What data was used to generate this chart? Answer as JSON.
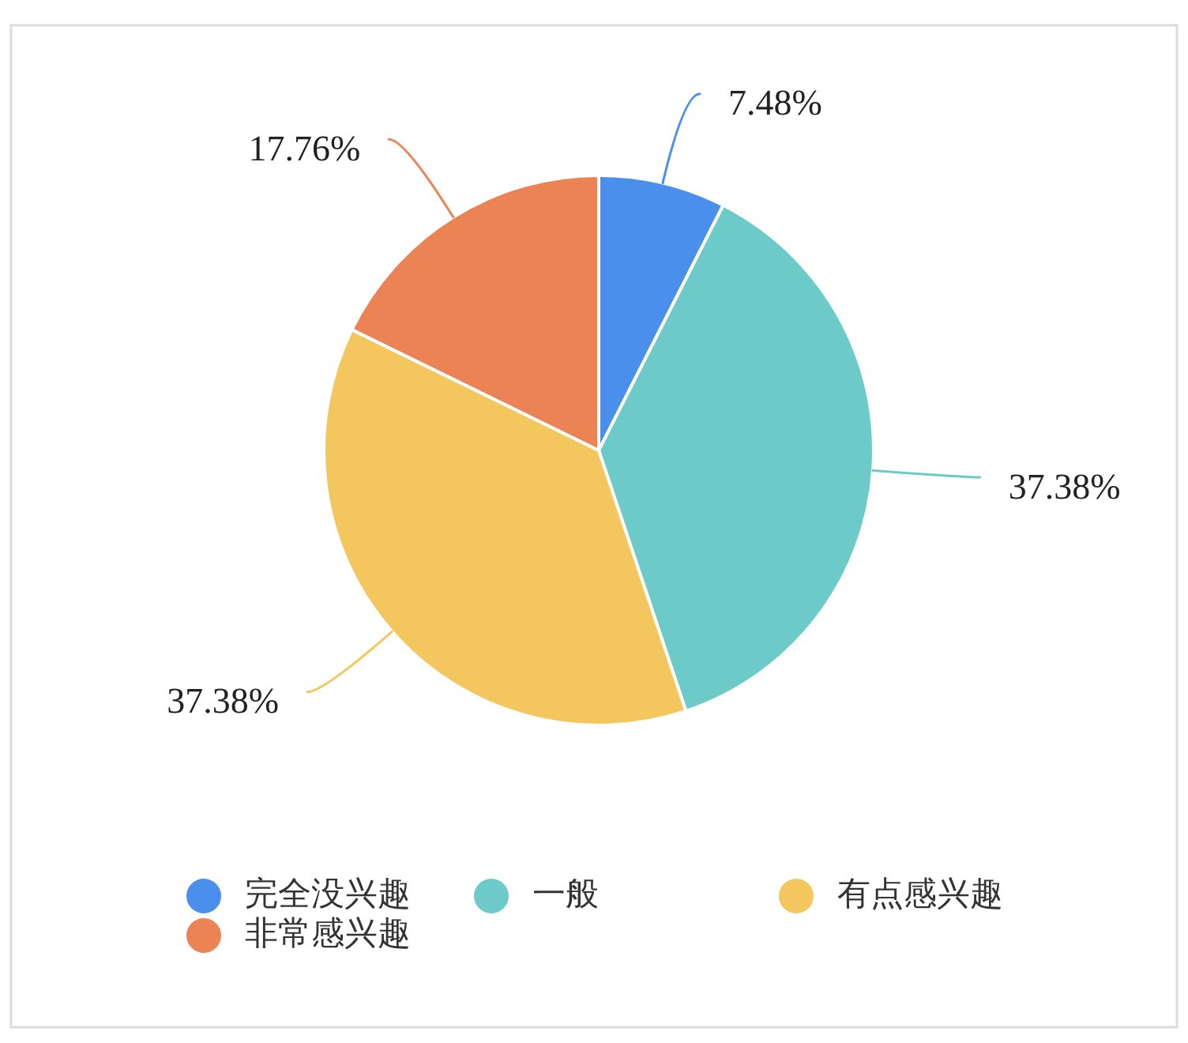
{
  "chart_data": {
    "type": "pie",
    "categories": [
      "完全没兴趣",
      "一般",
      "有点感兴趣",
      "非常感兴趣"
    ],
    "values": [
      7.48,
      37.38,
      37.38,
      17.76
    ],
    "colors": [
      "#4a8fec",
      "#6ccbc8",
      "#f4c65e",
      "#ec8354"
    ],
    "value_labels": [
      "7.48%",
      "37.38%",
      "37.38%",
      "17.76%"
    ],
    "legend": "bottom"
  }
}
